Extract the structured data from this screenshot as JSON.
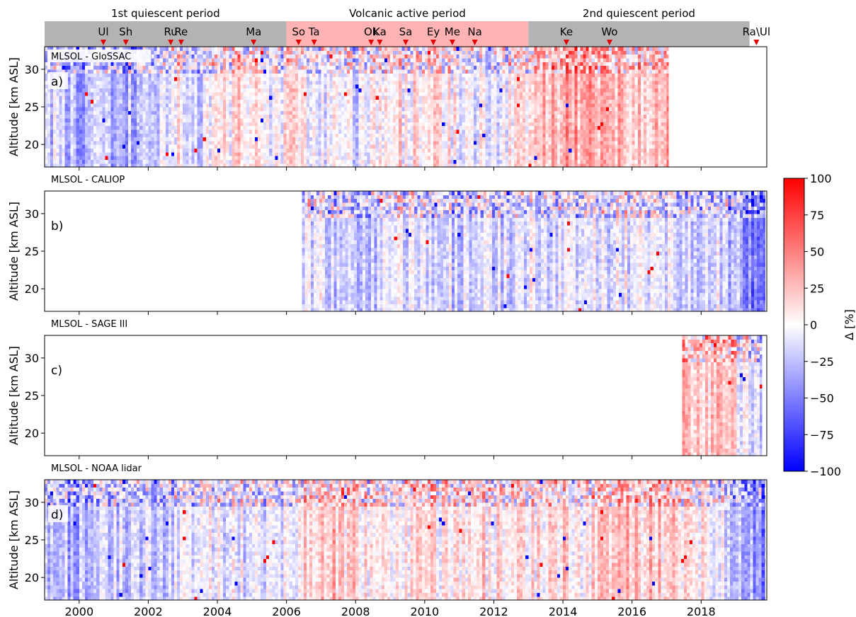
{
  "periods": [
    {
      "label": "1st quiescent period",
      "start": 1999.0,
      "end": 2006.0,
      "color": "#b3b3b3"
    },
    {
      "label": "Volcanic active period",
      "start": 2006.0,
      "end": 2013.0,
      "color": "#ffb3b3"
    },
    {
      "label": "2nd quiescent period",
      "start": 2013.0,
      "end": 2019.4,
      "color": "#b3b3b3"
    }
  ],
  "eruptions": [
    {
      "label": "Ul",
      "date": 2000.7
    },
    {
      "label": "Sh",
      "date": 2001.35
    },
    {
      "label": "Ru",
      "date": 2002.65
    },
    {
      "label": "Re",
      "date": 2002.95
    },
    {
      "label": "Ma",
      "date": 2005.05
    },
    {
      "label": "So",
      "date": 2006.35
    },
    {
      "label": "Ta",
      "date": 2006.8
    },
    {
      "label": "Ok",
      "date": 2008.45
    },
    {
      "label": "Ka",
      "date": 2008.7
    },
    {
      "label": "Sa",
      "date": 2009.45
    },
    {
      "label": "Ey",
      "date": 2010.25
    },
    {
      "label": "Me",
      "date": 2010.8
    },
    {
      "label": "Na",
      "date": 2011.45
    },
    {
      "label": "Ke",
      "date": 2014.1
    },
    {
      "label": "Wo",
      "date": 2015.35
    },
    {
      "label": "Ra\\Ul",
      "date": 2019.6
    }
  ],
  "chart_data": [
    {
      "type": "heatmap",
      "panel_label": "a)",
      "title": "MLSOL - GloSSAC",
      "ylabel": "Altitude [km ASL]",
      "xlim": [
        1999.0,
        2019.9
      ],
      "ylim": [
        17,
        33
      ],
      "data_range": [
        1999.0,
        2017.05
      ],
      "yticks": [
        20,
        25,
        30
      ],
      "bias_profile": [
        [
          1999.0,
          -20
        ],
        [
          2000.0,
          -30
        ],
        [
          2001.0,
          -28
        ],
        [
          2002.0,
          -25
        ],
        [
          2002.7,
          10
        ],
        [
          2003.5,
          -15
        ],
        [
          2004.5,
          15
        ],
        [
          2005.5,
          -5
        ],
        [
          2006.2,
          10
        ],
        [
          2007.0,
          -5
        ],
        [
          2008.0,
          -15
        ],
        [
          2008.6,
          5
        ],
        [
          2009.5,
          8
        ],
        [
          2010.5,
          12
        ],
        [
          2011.5,
          -10
        ],
        [
          2012.5,
          5
        ],
        [
          2013.3,
          20
        ],
        [
          2014.0,
          35
        ],
        [
          2015.0,
          30
        ],
        [
          2016.0,
          25
        ],
        [
          2017.0,
          30
        ]
      ]
    },
    {
      "type": "heatmap",
      "panel_label": "b)",
      "title": "MLSOL - CALIOP",
      "ylabel": "Altitude [km ASL]",
      "xlim": [
        1999.0,
        2019.9
      ],
      "ylim": [
        17,
        33
      ],
      "data_range": [
        2006.45,
        2019.85
      ],
      "yticks": [
        20,
        25,
        30
      ],
      "bias_profile": [
        [
          2006.5,
          -8
        ],
        [
          2007.5,
          -15
        ],
        [
          2008.5,
          -20
        ],
        [
          2009.5,
          -10
        ],
        [
          2010.5,
          -18
        ],
        [
          2011.5,
          -15
        ],
        [
          2012.5,
          -12
        ],
        [
          2013.5,
          -8
        ],
        [
          2014.5,
          -12
        ],
        [
          2015.5,
          -10
        ],
        [
          2016.5,
          -10
        ],
        [
          2017.5,
          -12
        ],
        [
          2018.5,
          -15
        ],
        [
          2019.4,
          -45
        ],
        [
          2019.85,
          -55
        ]
      ]
    },
    {
      "type": "heatmap",
      "panel_label": "c)",
      "title": "MLSOL - SAGE III",
      "ylabel": "Altitude [km ASL]",
      "xlim": [
        1999.0,
        2019.9
      ],
      "ylim": [
        17,
        33
      ],
      "data_range": [
        2017.45,
        2019.75
      ],
      "yticks": [
        20,
        25,
        30
      ],
      "bias_profile": [
        [
          2017.45,
          35
        ],
        [
          2017.9,
          25
        ],
        [
          2018.4,
          20
        ],
        [
          2018.9,
          10
        ],
        [
          2019.3,
          -10
        ],
        [
          2019.7,
          -20
        ]
      ]
    },
    {
      "type": "heatmap",
      "panel_label": "d)",
      "title": "MLSOL - NOAA lidar",
      "ylabel": "Altitude [km ASL]",
      "xlim": [
        1999.0,
        2019.9
      ],
      "ylim": [
        17,
        33
      ],
      "data_range": [
        1999.0,
        2019.85
      ],
      "yticks": [
        20,
        25,
        30
      ],
      "bias_profile": [
        [
          1999.0,
          -25
        ],
        [
          2000.0,
          -30
        ],
        [
          2001.0,
          -15
        ],
        [
          2002.0,
          -20
        ],
        [
          2003.0,
          -10
        ],
        [
          2004.0,
          -5
        ],
        [
          2005.0,
          -15
        ],
        [
          2006.0,
          -8
        ],
        [
          2006.6,
          25
        ],
        [
          2007.5,
          20
        ],
        [
          2008.5,
          10
        ],
        [
          2009.5,
          10
        ],
        [
          2010.5,
          5
        ],
        [
          2011.5,
          12
        ],
        [
          2012.5,
          8
        ],
        [
          2013.5,
          15
        ],
        [
          2014.5,
          10
        ],
        [
          2015.5,
          25
        ],
        [
          2016.5,
          20
        ],
        [
          2017.5,
          10
        ],
        [
          2018.5,
          0
        ],
        [
          2019.3,
          -35
        ],
        [
          2019.85,
          -50
        ]
      ]
    }
  ],
  "xticks": [
    2000,
    2002,
    2004,
    2006,
    2008,
    2010,
    2012,
    2014,
    2016,
    2018
  ],
  "colorbar": {
    "label": "Δ [%]",
    "range": [
      -100,
      100
    ],
    "ticks": [
      100,
      75,
      50,
      25,
      0,
      -25,
      -50,
      -75,
      -100
    ],
    "cmap": "bwr"
  }
}
